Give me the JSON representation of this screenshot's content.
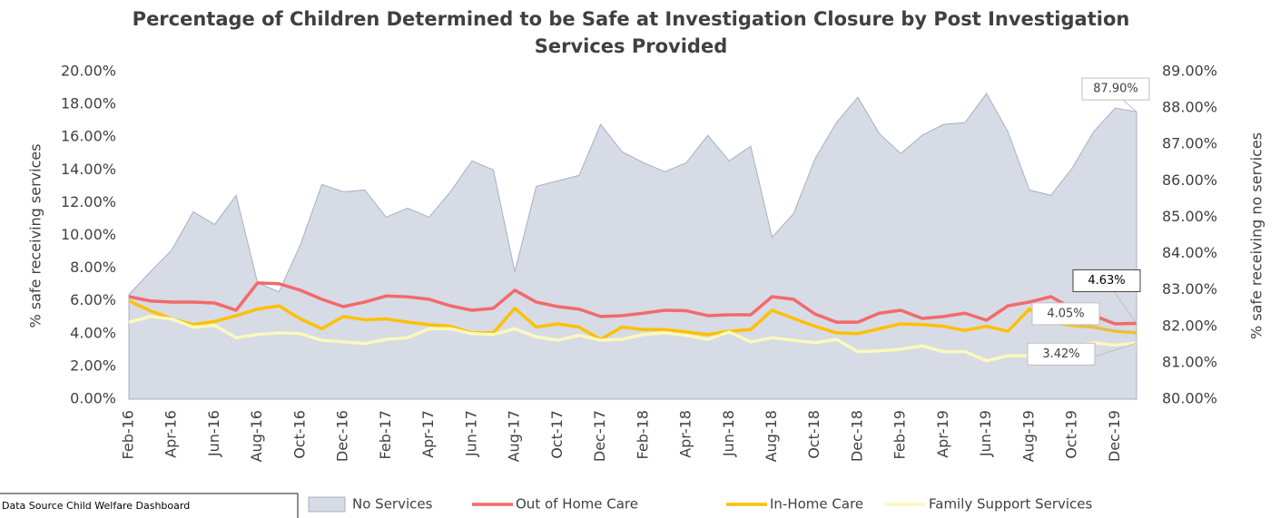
{
  "chart_data": {
    "type": "line",
    "title": "Percentage of Children Determined to be Safe at Investigation Closure by Post Investigation Services Provided",
    "ylabel": "% safe receiving services",
    "y2label": "% safe receiving no services",
    "annotation": "Data Source Child Welfare Dashboard",
    "categories": [
      "Feb-16",
      null,
      "Apr-16",
      null,
      "Jun-16",
      null,
      "Aug-16",
      null,
      "Oct-16",
      null,
      "Dec-16",
      null,
      "Feb-17",
      null,
      "Apr-17",
      null,
      "Jun-17",
      null,
      "Aug-17",
      null,
      "Oct-17",
      null,
      "Dec-17",
      null,
      "Feb-18",
      null,
      "Apr-18",
      null,
      "Jun-18",
      null,
      "Aug-18",
      null,
      "Oct-18",
      null,
      "Dec-18",
      null,
      "Feb-19",
      null,
      "Apr-19",
      null,
      "Jun-19",
      null,
      "Aug-19",
      null,
      "Oct-19",
      null,
      "Dec-19",
      null
    ],
    "ylim": [
      0,
      20
    ],
    "yticks": [
      {
        "value": 0,
        "label": "0.00%"
      },
      {
        "value": 2,
        "label": "2.00%"
      },
      {
        "value": 4,
        "label": "4.00%"
      },
      {
        "value": 6,
        "label": "6.00%"
      },
      {
        "value": 8,
        "label": "8.00%"
      },
      {
        "value": 10,
        "label": "10.00%"
      },
      {
        "value": 12,
        "label": "12.00%"
      },
      {
        "value": 14,
        "label": "14.00%"
      },
      {
        "value": 16,
        "label": "16.00%"
      },
      {
        "value": 18,
        "label": "18.00%"
      },
      {
        "value": 20,
        "label": "20.00%"
      }
    ],
    "y2lim": [
      80,
      89
    ],
    "y2ticks": [
      {
        "value": 80,
        "label": "80.00%"
      },
      {
        "value": 81,
        "label": "81.00%"
      },
      {
        "value": 82,
        "label": "82.00%"
      },
      {
        "value": 83,
        "label": "83.00%"
      },
      {
        "value": 84,
        "label": "84.00%"
      },
      {
        "value": 85,
        "label": "85.00%"
      },
      {
        "value": 86,
        "label": "86.00%"
      },
      {
        "value": 87,
        "label": "87.00%"
      },
      {
        "value": 88,
        "label": "88.00%"
      },
      {
        "value": 89,
        "label": "89.00%"
      }
    ],
    "grid": false,
    "legend": "bottom",
    "series": [
      {
        "name": "No Services",
        "kind": "area",
        "axis": "y2",
        "color": "#d6dbe5",
        "values": [
          82.87,
          83.5,
          84.1,
          85.15,
          84.8,
          85.6,
          83.2,
          82.95,
          84.25,
          85.9,
          85.7,
          85.75,
          85.0,
          85.25,
          85.0,
          85.7,
          86.55,
          86.3,
          83.5,
          85.85,
          86.0,
          86.15,
          87.55,
          86.8,
          86.5,
          86.25,
          86.5,
          87.25,
          86.55,
          86.95,
          84.45,
          85.1,
          86.6,
          87.6,
          88.3,
          87.3,
          86.75,
          87.25,
          87.55,
          87.6,
          88.4,
          87.35,
          85.75,
          85.6,
          86.35,
          87.35,
          88.0,
          87.9
        ],
        "value_labels": [
          null,
          null,
          null,
          null,
          null,
          null,
          null,
          null,
          null,
          null,
          null,
          null,
          null,
          null,
          null,
          null,
          null,
          null,
          null,
          null,
          null,
          null,
          null,
          null,
          null,
          null,
          null,
          null,
          null,
          null,
          null,
          null,
          null,
          null,
          null,
          null,
          null,
          null,
          null,
          null,
          null,
          null,
          null,
          null,
          null,
          null,
          null,
          "87.90%"
        ]
      },
      {
        "name": "Out of Home Care",
        "color": "#f4696b",
        "values": [
          6.26,
          6.0,
          5.93,
          5.93,
          5.87,
          5.43,
          7.1,
          7.05,
          6.65,
          6.1,
          5.65,
          5.93,
          6.3,
          6.25,
          6.1,
          5.7,
          5.43,
          5.55,
          6.65,
          5.93,
          5.65,
          5.5,
          5.05,
          5.1,
          5.25,
          5.43,
          5.4,
          5.1,
          5.15,
          5.15,
          6.26,
          6.1,
          5.2,
          4.7,
          4.7,
          5.25,
          5.43,
          4.93,
          5.05,
          5.25,
          4.82,
          5.7,
          5.93,
          6.26,
          5.55,
          5.1,
          4.6,
          4.63
        ],
        "value_labels": [
          null,
          null,
          null,
          null,
          null,
          null,
          null,
          null,
          null,
          null,
          null,
          null,
          null,
          null,
          null,
          null,
          null,
          null,
          null,
          null,
          null,
          null,
          null,
          null,
          null,
          null,
          null,
          null,
          null,
          null,
          null,
          null,
          null,
          null,
          null,
          null,
          null,
          null,
          null,
          null,
          null,
          null,
          null,
          null,
          null,
          null,
          null,
          "4.63%"
        ]
      },
      {
        "name": "In-Home Care",
        "color": "#ffc000",
        "values": [
          6.0,
          5.4,
          4.9,
          4.55,
          4.75,
          5.1,
          5.5,
          5.7,
          4.9,
          4.3,
          5.05,
          4.85,
          4.9,
          4.7,
          4.55,
          4.45,
          4.05,
          4.05,
          5.55,
          4.4,
          4.6,
          4.4,
          3.65,
          4.4,
          4.25,
          4.25,
          4.1,
          3.95,
          4.15,
          4.25,
          5.43,
          4.93,
          4.45,
          4.05,
          4.0,
          4.3,
          4.6,
          4.55,
          4.45,
          4.2,
          4.45,
          4.15,
          5.5,
          4.7,
          4.5,
          4.4,
          4.15,
          4.05
        ],
        "value_labels": [
          null,
          null,
          null,
          null,
          null,
          null,
          null,
          null,
          null,
          null,
          null,
          null,
          null,
          null,
          null,
          null,
          null,
          null,
          null,
          null,
          null,
          null,
          null,
          null,
          null,
          null,
          null,
          null,
          null,
          null,
          null,
          null,
          null,
          null,
          null,
          null,
          null,
          null,
          null,
          null,
          null,
          null,
          null,
          null,
          null,
          null,
          null,
          "4.05%"
        ]
      },
      {
        "name": "Family Support Services",
        "color": "#fbf8bd",
        "values": [
          4.7,
          5.05,
          4.9,
          4.4,
          4.5,
          3.75,
          3.95,
          4.05,
          4.0,
          3.6,
          3.5,
          3.4,
          3.65,
          3.75,
          4.3,
          4.3,
          4.0,
          3.95,
          4.3,
          3.8,
          3.6,
          3.9,
          3.6,
          3.65,
          3.95,
          4.05,
          3.9,
          3.65,
          4.1,
          3.5,
          3.75,
          3.6,
          3.45,
          3.65,
          2.9,
          2.95,
          3.05,
          3.25,
          2.9,
          2.9,
          2.35,
          2.65,
          2.65,
          3.3,
          3.25,
          3.45,
          3.3,
          3.42
        ],
        "value_labels": [
          null,
          null,
          null,
          null,
          null,
          null,
          null,
          null,
          null,
          null,
          null,
          null,
          null,
          null,
          null,
          null,
          null,
          null,
          null,
          null,
          null,
          null,
          null,
          null,
          null,
          null,
          null,
          null,
          null,
          null,
          null,
          null,
          null,
          null,
          null,
          null,
          null,
          null,
          null,
          null,
          null,
          null,
          null,
          null,
          null,
          null,
          null,
          "3.42%"
        ]
      }
    ]
  }
}
